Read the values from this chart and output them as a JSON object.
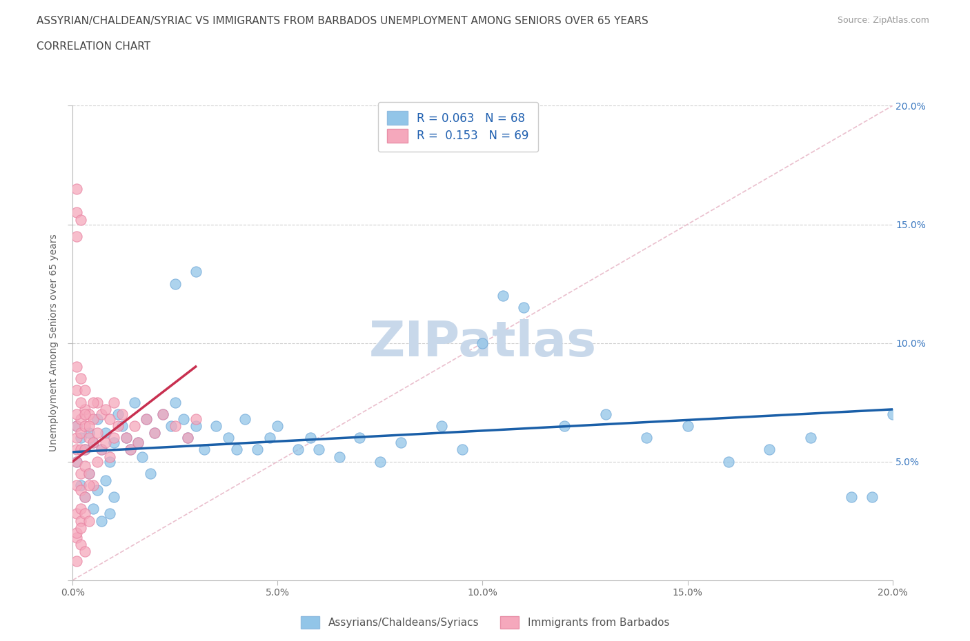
{
  "title_line1": "ASSYRIAN/CHALDEAN/SYRIAC VS IMMIGRANTS FROM BARBADOS UNEMPLOYMENT AMONG SENIORS OVER 65 YEARS",
  "title_line2": "CORRELATION CHART",
  "source": "Source: ZipAtlas.com",
  "ylabel": "Unemployment Among Seniors over 65 years",
  "xlim": [
    0.0,
    0.2
  ],
  "ylim": [
    0.0,
    0.2
  ],
  "xticks": [
    0.0,
    0.05,
    0.1,
    0.15,
    0.2
  ],
  "yticks": [
    0.0,
    0.05,
    0.1,
    0.15,
    0.2
  ],
  "xticklabels": [
    "0.0%",
    "5.0%",
    "10.0%",
    "15.0%",
    "20.0%"
  ],
  "right_yticklabels": [
    "",
    "5.0%",
    "10.0%",
    "15.0%",
    "20.0%"
  ],
  "legend_label1": "Assyrians/Chaldeans/Syriacs",
  "legend_label2": "Immigrants from Barbados",
  "R1": "0.063",
  "N1": "68",
  "R2": "0.153",
  "N2": "69",
  "color1": "#92c5e8",
  "color2": "#f5a8bc",
  "line1_color": "#1a5fa8",
  "line2_color": "#c83050",
  "diag_color": "#e8b8c8",
  "watermark": "ZIPatlas",
  "watermark_color": "#c8d8ea",
  "blue_line_x": [
    0.0,
    0.2
  ],
  "blue_line_y": [
    0.054,
    0.072
  ],
  "pink_line_x": [
    0.0,
    0.03
  ],
  "pink_line_y": [
    0.05,
    0.09
  ],
  "blue_scatter_x": [
    0.001,
    0.001,
    0.002,
    0.002,
    0.003,
    0.003,
    0.004,
    0.004,
    0.005,
    0.005,
    0.006,
    0.006,
    0.007,
    0.007,
    0.008,
    0.008,
    0.009,
    0.009,
    0.01,
    0.01,
    0.011,
    0.012,
    0.013,
    0.014,
    0.015,
    0.016,
    0.017,
    0.018,
    0.019,
    0.02,
    0.022,
    0.024,
    0.025,
    0.027,
    0.028,
    0.03,
    0.032,
    0.035,
    0.038,
    0.04,
    0.042,
    0.045,
    0.048,
    0.05,
    0.055,
    0.058,
    0.06,
    0.065,
    0.07,
    0.075,
    0.08,
    0.09,
    0.095,
    0.1,
    0.105,
    0.11,
    0.12,
    0.13,
    0.14,
    0.15,
    0.16,
    0.17,
    0.18,
    0.19,
    0.195,
    0.2,
    0.025,
    0.03
  ],
  "blue_scatter_y": [
    0.065,
    0.05,
    0.06,
    0.04,
    0.055,
    0.035,
    0.062,
    0.045,
    0.058,
    0.03,
    0.068,
    0.038,
    0.055,
    0.025,
    0.062,
    0.042,
    0.05,
    0.028,
    0.058,
    0.035,
    0.07,
    0.065,
    0.06,
    0.055,
    0.075,
    0.058,
    0.052,
    0.068,
    0.045,
    0.062,
    0.07,
    0.065,
    0.075,
    0.068,
    0.06,
    0.065,
    0.055,
    0.065,
    0.06,
    0.055,
    0.068,
    0.055,
    0.06,
    0.065,
    0.055,
    0.06,
    0.055,
    0.052,
    0.06,
    0.05,
    0.058,
    0.065,
    0.055,
    0.1,
    0.12,
    0.115,
    0.065,
    0.07,
    0.06,
    0.065,
    0.05,
    0.055,
    0.06,
    0.035,
    0.035,
    0.07,
    0.125,
    0.13
  ],
  "pink_scatter_x": [
    0.001,
    0.001,
    0.001,
    0.001,
    0.002,
    0.002,
    0.002,
    0.002,
    0.003,
    0.003,
    0.003,
    0.003,
    0.004,
    0.004,
    0.004,
    0.005,
    0.005,
    0.005,
    0.006,
    0.006,
    0.006,
    0.007,
    0.007,
    0.008,
    0.008,
    0.009,
    0.009,
    0.01,
    0.01,
    0.011,
    0.012,
    0.013,
    0.014,
    0.015,
    0.016,
    0.018,
    0.02,
    0.022,
    0.025,
    0.028,
    0.03,
    0.001,
    0.001,
    0.001,
    0.002,
    0.002,
    0.003,
    0.003,
    0.004,
    0.005,
    0.001,
    0.002,
    0.003,
    0.004,
    0.001,
    0.002,
    0.001,
    0.002,
    0.003,
    0.001,
    0.001,
    0.001,
    0.002,
    0.001,
    0.002,
    0.002,
    0.003,
    0.004,
    0.001
  ],
  "pink_scatter_y": [
    0.065,
    0.06,
    0.055,
    0.05,
    0.068,
    0.062,
    0.055,
    0.045,
    0.072,
    0.065,
    0.055,
    0.048,
    0.07,
    0.06,
    0.045,
    0.068,
    0.058,
    0.04,
    0.075,
    0.062,
    0.05,
    0.07,
    0.055,
    0.072,
    0.058,
    0.068,
    0.052,
    0.075,
    0.06,
    0.065,
    0.07,
    0.06,
    0.055,
    0.065,
    0.058,
    0.068,
    0.062,
    0.07,
    0.065,
    0.06,
    0.068,
    0.09,
    0.08,
    0.07,
    0.085,
    0.075,
    0.08,
    0.07,
    0.065,
    0.075,
    0.04,
    0.038,
    0.035,
    0.04,
    0.028,
    0.025,
    0.018,
    0.015,
    0.012,
    0.165,
    0.155,
    0.145,
    0.152,
    0.02,
    0.022,
    0.03,
    0.028,
    0.025,
    0.008
  ]
}
